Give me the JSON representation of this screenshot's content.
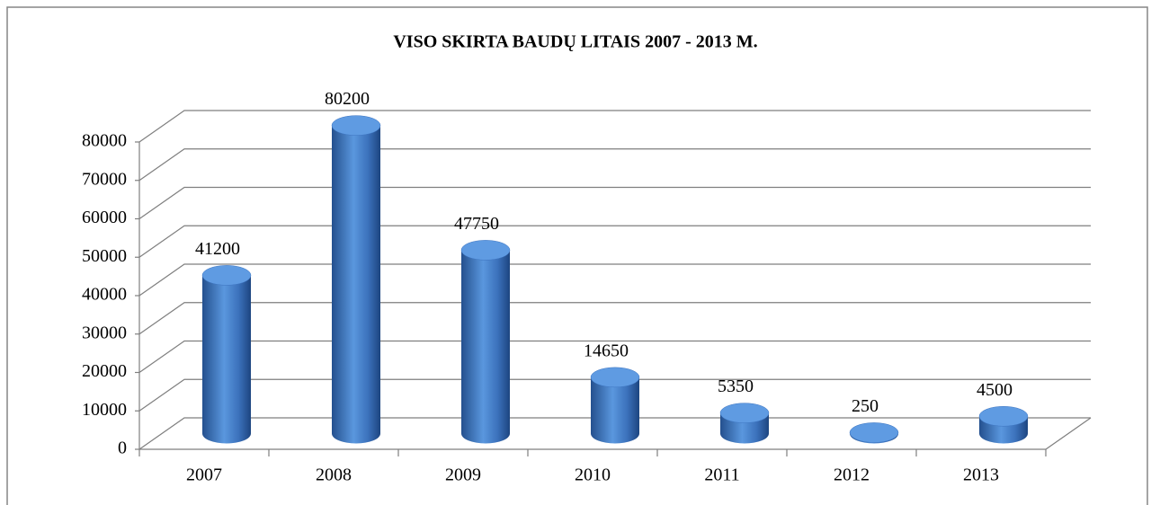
{
  "chart_data": {
    "type": "bar",
    "title": "VISO SKIRTA BAUDŲ LITAIS 2007 - 2013 M.",
    "categories": [
      "2007",
      "2008",
      "2009",
      "2010",
      "2011",
      "2012",
      "2013"
    ],
    "values": [
      41200,
      80200,
      47750,
      14650,
      5350,
      250,
      4500
    ],
    "color": "#3d74c0",
    "ylim": [
      0,
      80000
    ],
    "yticks": [
      0,
      10000,
      20000,
      30000,
      40000,
      50000,
      60000,
      70000,
      80000
    ],
    "grid": true
  }
}
